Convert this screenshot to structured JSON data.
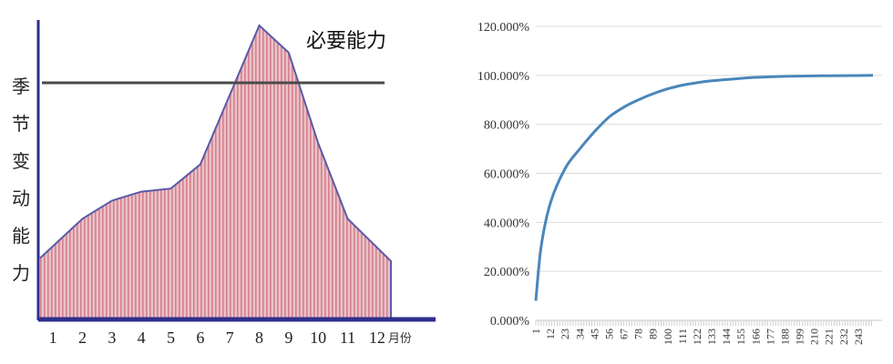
{
  "chart_data": [
    {
      "type": "area",
      "title": "",
      "xlabel": "",
      "ylabel": "季节变动能力",
      "x_unit": "月份",
      "x": [
        1,
        2,
        3,
        4,
        5,
        6,
        7,
        8,
        9,
        10,
        11,
        12
      ],
      "xticks": [
        "1",
        "2",
        "3",
        "4",
        "5",
        "6",
        "7",
        "8",
        "9",
        "10",
        "11",
        "12"
      ],
      "xlim": [
        0.5,
        12.5
      ],
      "ylim": [
        0,
        100
      ],
      "series": [
        {
          "values": [
            20,
            33,
            39,
            42,
            43,
            51,
            74,
            97,
            88,
            58,
            33,
            19
          ]
        }
      ],
      "reference_line": {
        "label": "必要能力",
        "value": 78
      },
      "grid": false,
      "colors": {
        "fill": "#e8c4c6",
        "hatch": "#d87d90",
        "outline": "#5a5aa8",
        "axis": "#2e2e8c",
        "reference_line": "#4a4a4a"
      }
    },
    {
      "type": "line",
      "title": "",
      "xlabel": "",
      "ylabel": "",
      "x": [
        1,
        5,
        12,
        23,
        34,
        45,
        56,
        67,
        78,
        89,
        100,
        111,
        122,
        133,
        144,
        155,
        166,
        177,
        188,
        199,
        210,
        221,
        232,
        243,
        254
      ],
      "xticks": [
        "1",
        "12",
        "23",
        "34",
        "45",
        "56",
        "67",
        "78",
        "89",
        "100",
        "111",
        "122",
        "133",
        "144",
        "155",
        "166",
        "177",
        "188",
        "199",
        "210",
        "221",
        "232",
        "243"
      ],
      "yticks": [
        "0.000%",
        "20.000%",
        "40.000%",
        "60.000%",
        "80.000%",
        "100.000%",
        "120.000%"
      ],
      "ylim": [
        0,
        120
      ],
      "xlim": [
        1,
        254
      ],
      "series": [
        {
          "values": [
            8,
            30,
            48,
            62,
            70,
            77,
            83,
            87,
            90,
            92.5,
            94.5,
            96,
            97,
            97.8,
            98.3,
            98.8,
            99.2,
            99.4,
            99.6,
            99.7,
            99.8,
            99.85,
            99.9,
            99.95,
            100
          ]
        }
      ],
      "grid": true,
      "colors": {
        "line": "#4a86ba",
        "grid": "#dcdcdc"
      }
    }
  ]
}
